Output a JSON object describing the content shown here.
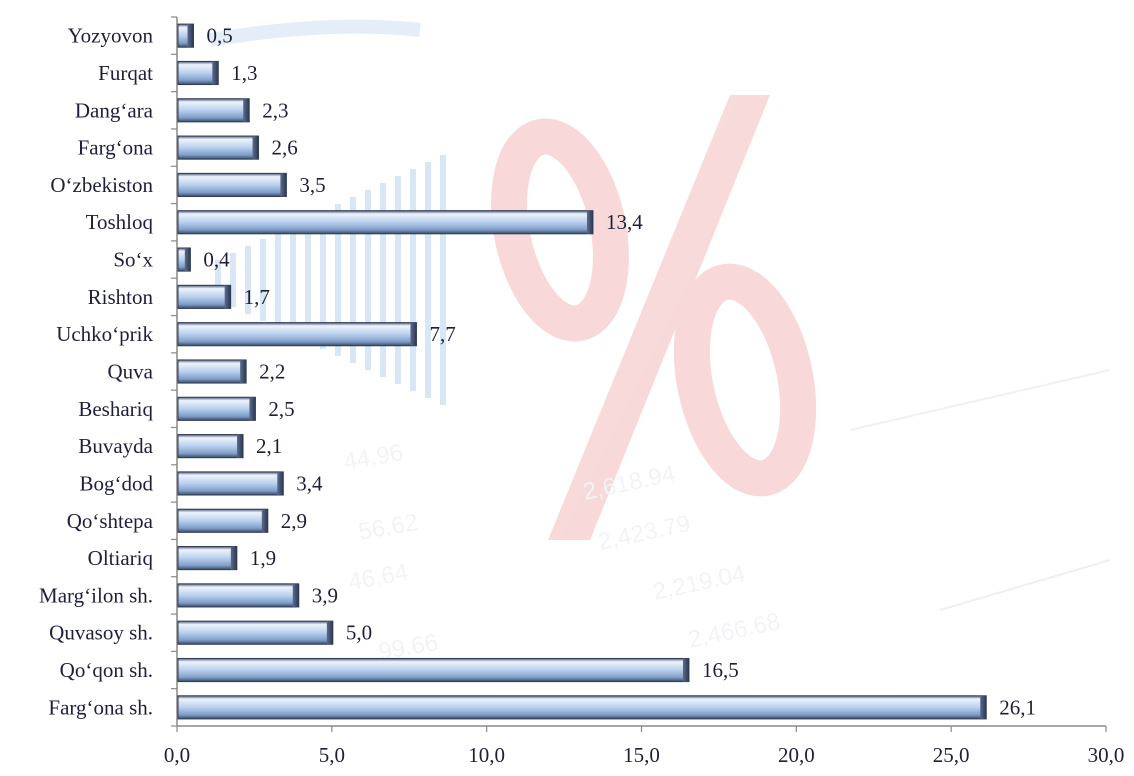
{
  "chart_data": {
    "type": "bar",
    "orientation": "horizontal",
    "categories": [
      "Yozyovon",
      "Furqat",
      "Dang‘ara",
      "Farg‘ona",
      "O‘zbekiston",
      "Toshloq",
      "So‘x",
      "Rishton",
      "Uchko‘prik",
      "Quva",
      "Beshariq",
      "Buvayda",
      "Bog‘dod",
      "Qo‘shtepa",
      "Oltiariq",
      "Marg‘ilon sh.",
      "Quvasoy sh.",
      "Qo‘qon sh.",
      "Farg‘ona sh."
    ],
    "values": [
      0.5,
      1.3,
      2.3,
      2.6,
      3.5,
      13.4,
      0.4,
      1.7,
      7.7,
      2.2,
      2.5,
      2.1,
      3.4,
      2.9,
      1.9,
      3.9,
      5.0,
      16.5,
      26.1
    ],
    "value_labels": [
      "0,5",
      "1,3",
      "2,3",
      "2,6",
      "3,5",
      "13,4",
      "0,4",
      "1,7",
      "7,7",
      "2,2",
      "2,5",
      "2,1",
      "3,4",
      "2,9",
      "1,9",
      "3,9",
      "5,0",
      "16,5",
      "26,1"
    ],
    "xlim": [
      0,
      30
    ],
    "xticks": [
      0,
      5,
      10,
      15,
      20,
      25,
      30
    ],
    "xtick_labels": [
      "0,0",
      "5,0",
      "10,0",
      "15,0",
      "20,0",
      "25,0",
      "30,0"
    ],
    "title": "",
    "xlabel": "",
    "ylabel": "",
    "grid": false,
    "legend": "none",
    "colors": {
      "bar_light": "#dde9f8",
      "bar_mid": "#9fbde2",
      "bar_dark": "#3e4f6b",
      "text": "#1f1f3a",
      "axis": "#7f7f7f"
    }
  },
  "background": {
    "watermark_numbers": [
      "2,618.94",
      "2,423.79",
      "2,219.04",
      "2,466.68",
      "56.62",
      "46.64",
      "44.96",
      "99.66"
    ]
  }
}
